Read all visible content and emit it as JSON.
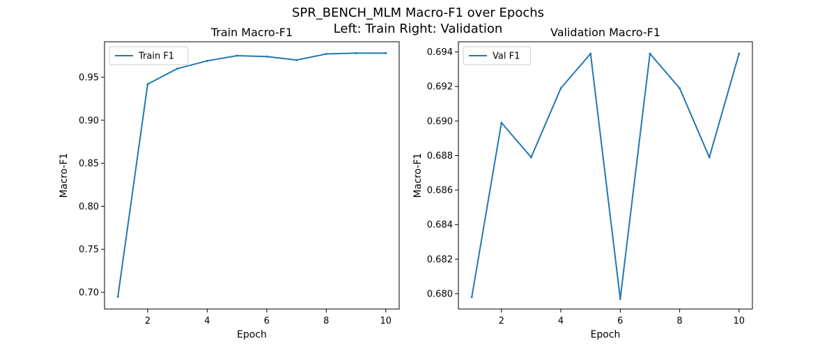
{
  "figure": {
    "title_line1": "SPR_BENCH_MLM Macro-F1 over Epochs",
    "title_line2": "Left: Train  Right: Validation"
  },
  "chart_data": [
    {
      "type": "line",
      "title": "Train Macro-F1",
      "xlabel": "Epoch",
      "ylabel": "Macro-F1",
      "xlim": [
        0.55,
        10.45
      ],
      "ylim": [
        0.6806,
        0.9912
      ],
      "xticks": [
        2,
        4,
        6,
        8,
        10
      ],
      "xtick_labels": [
        "2",
        "4",
        "6",
        "8",
        "10"
      ],
      "yticks": [
        0.7,
        0.75,
        0.8,
        0.85,
        0.9,
        0.95
      ],
      "ytick_labels": [
        "0.70",
        "0.75",
        "0.80",
        "0.85",
        "0.90",
        "0.95"
      ],
      "grid": false,
      "legend_position": "upper-left",
      "color": "#1f77b4",
      "series": [
        {
          "name": "Train F1",
          "x": [
            1,
            2,
            3,
            4,
            5,
            6,
            7,
            8,
            9,
            10
          ],
          "values": [
            0.695,
            0.942,
            0.96,
            0.969,
            0.975,
            0.974,
            0.97,
            0.977,
            0.978,
            0.978
          ]
        }
      ]
    },
    {
      "type": "line",
      "title": "Validation Macro-F1",
      "xlabel": "Epoch",
      "ylabel": "Macro-F1",
      "xlim": [
        0.55,
        10.45
      ],
      "ylim": [
        0.67911,
        0.69459
      ],
      "xticks": [
        2,
        4,
        6,
        8,
        10
      ],
      "xtick_labels": [
        "2",
        "4",
        "6",
        "8",
        "10"
      ],
      "yticks": [
        0.68,
        0.682,
        0.684,
        0.686,
        0.688,
        0.69,
        0.692,
        0.694
      ],
      "ytick_labels": [
        "0.680",
        "0.682",
        "0.684",
        "0.686",
        "0.688",
        "0.690",
        "0.692",
        "0.694"
      ],
      "grid": false,
      "legend_position": "upper-left",
      "color": "#1f77b4",
      "series": [
        {
          "name": "Val F1",
          "x": [
            1,
            2,
            3,
            4,
            5,
            6,
            7,
            8,
            9,
            10
          ],
          "values": [
            0.6798,
            0.6899,
            0.6879,
            0.6919,
            0.6939,
            0.6797,
            0.6939,
            0.6919,
            0.6879,
            0.6939
          ]
        }
      ]
    }
  ]
}
